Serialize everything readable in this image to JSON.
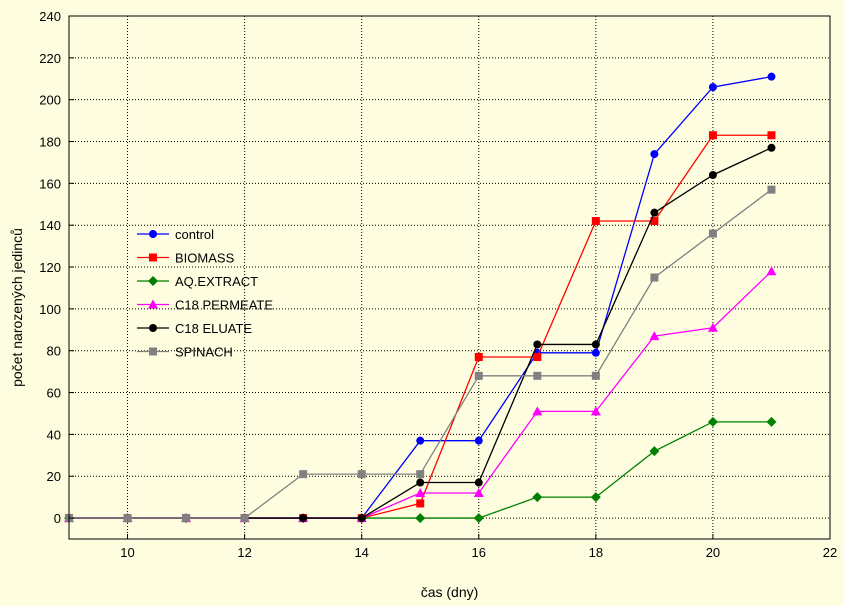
{
  "chart_data": {
    "type": "line",
    "title": "",
    "xlabel": "čas (dny)",
    "ylabel": "počet narozených jedinců",
    "xlim": [
      9,
      22
    ],
    "ylim": [
      -10,
      240
    ],
    "xticks": [
      10,
      12,
      14,
      16,
      18,
      20,
      22
    ],
    "yticks": [
      0,
      20,
      40,
      60,
      80,
      100,
      120,
      140,
      160,
      180,
      200,
      220,
      240
    ],
    "grid": true,
    "legend_position": "center-left",
    "series": [
      {
        "name": "control",
        "color": "#0000ff",
        "marker": "circle",
        "points": [
          [
            9,
            0
          ],
          [
            10,
            0
          ],
          [
            11,
            0
          ],
          [
            12,
            0
          ],
          [
            13,
            0
          ],
          [
            14,
            0
          ],
          [
            15,
            37
          ],
          [
            16,
            37
          ],
          [
            17,
            79
          ],
          [
            18,
            79
          ],
          [
            19,
            174
          ],
          [
            20,
            206
          ],
          [
            21,
            211
          ]
        ]
      },
      {
        "name": "BIOMASS",
        "color": "#ff0000",
        "marker": "square",
        "points": [
          [
            9,
            0
          ],
          [
            10,
            0
          ],
          [
            11,
            0
          ],
          [
            12,
            0
          ],
          [
            13,
            0
          ],
          [
            14,
            0
          ],
          [
            15,
            7
          ],
          [
            16,
            77
          ],
          [
            17,
            77
          ],
          [
            18,
            142
          ],
          [
            19,
            142
          ],
          [
            20,
            183
          ],
          [
            21,
            183
          ]
        ]
      },
      {
        "name": "AQ.EXTRACT",
        "color": "#008000",
        "marker": "diamond",
        "points": [
          [
            9,
            0
          ],
          [
            10,
            0
          ],
          [
            11,
            0
          ],
          [
            12,
            0
          ],
          [
            13,
            0
          ],
          [
            14,
            0
          ],
          [
            15,
            0
          ],
          [
            16,
            0
          ],
          [
            17,
            10
          ],
          [
            18,
            10
          ],
          [
            19,
            32
          ],
          [
            20,
            46
          ],
          [
            21,
            46
          ]
        ]
      },
      {
        "name": "C18 PERMEATE",
        "color": "#ff00ff",
        "marker": "triangle",
        "points": [
          [
            9,
            0
          ],
          [
            10,
            0
          ],
          [
            11,
            0
          ],
          [
            12,
            0
          ],
          [
            13,
            0
          ],
          [
            14,
            0
          ],
          [
            15,
            12
          ],
          [
            16,
            12
          ],
          [
            17,
            51
          ],
          [
            18,
            51
          ],
          [
            19,
            87
          ],
          [
            20,
            91
          ],
          [
            21,
            118
          ]
        ]
      },
      {
        "name": "C18 ELUATE",
        "color": "#000000",
        "marker": "circle",
        "points": [
          [
            9,
            0
          ],
          [
            10,
            0
          ],
          [
            11,
            0
          ],
          [
            12,
            0
          ],
          [
            13,
            0
          ],
          [
            14,
            0
          ],
          [
            15,
            17
          ],
          [
            16,
            17
          ],
          [
            17,
            83
          ],
          [
            18,
            83
          ],
          [
            19,
            146
          ],
          [
            20,
            164
          ],
          [
            21,
            177
          ]
        ]
      },
      {
        "name": "SPINACH",
        "color": "#808080",
        "marker": "square",
        "points": [
          [
            9,
            0
          ],
          [
            10,
            0
          ],
          [
            11,
            0
          ],
          [
            12,
            0
          ],
          [
            13,
            21
          ],
          [
            14,
            21
          ],
          [
            15,
            21
          ],
          [
            16,
            68
          ],
          [
            17,
            68
          ],
          [
            18,
            68
          ],
          [
            19,
            115
          ],
          [
            20,
            136
          ],
          [
            21,
            157
          ]
        ]
      }
    ]
  }
}
